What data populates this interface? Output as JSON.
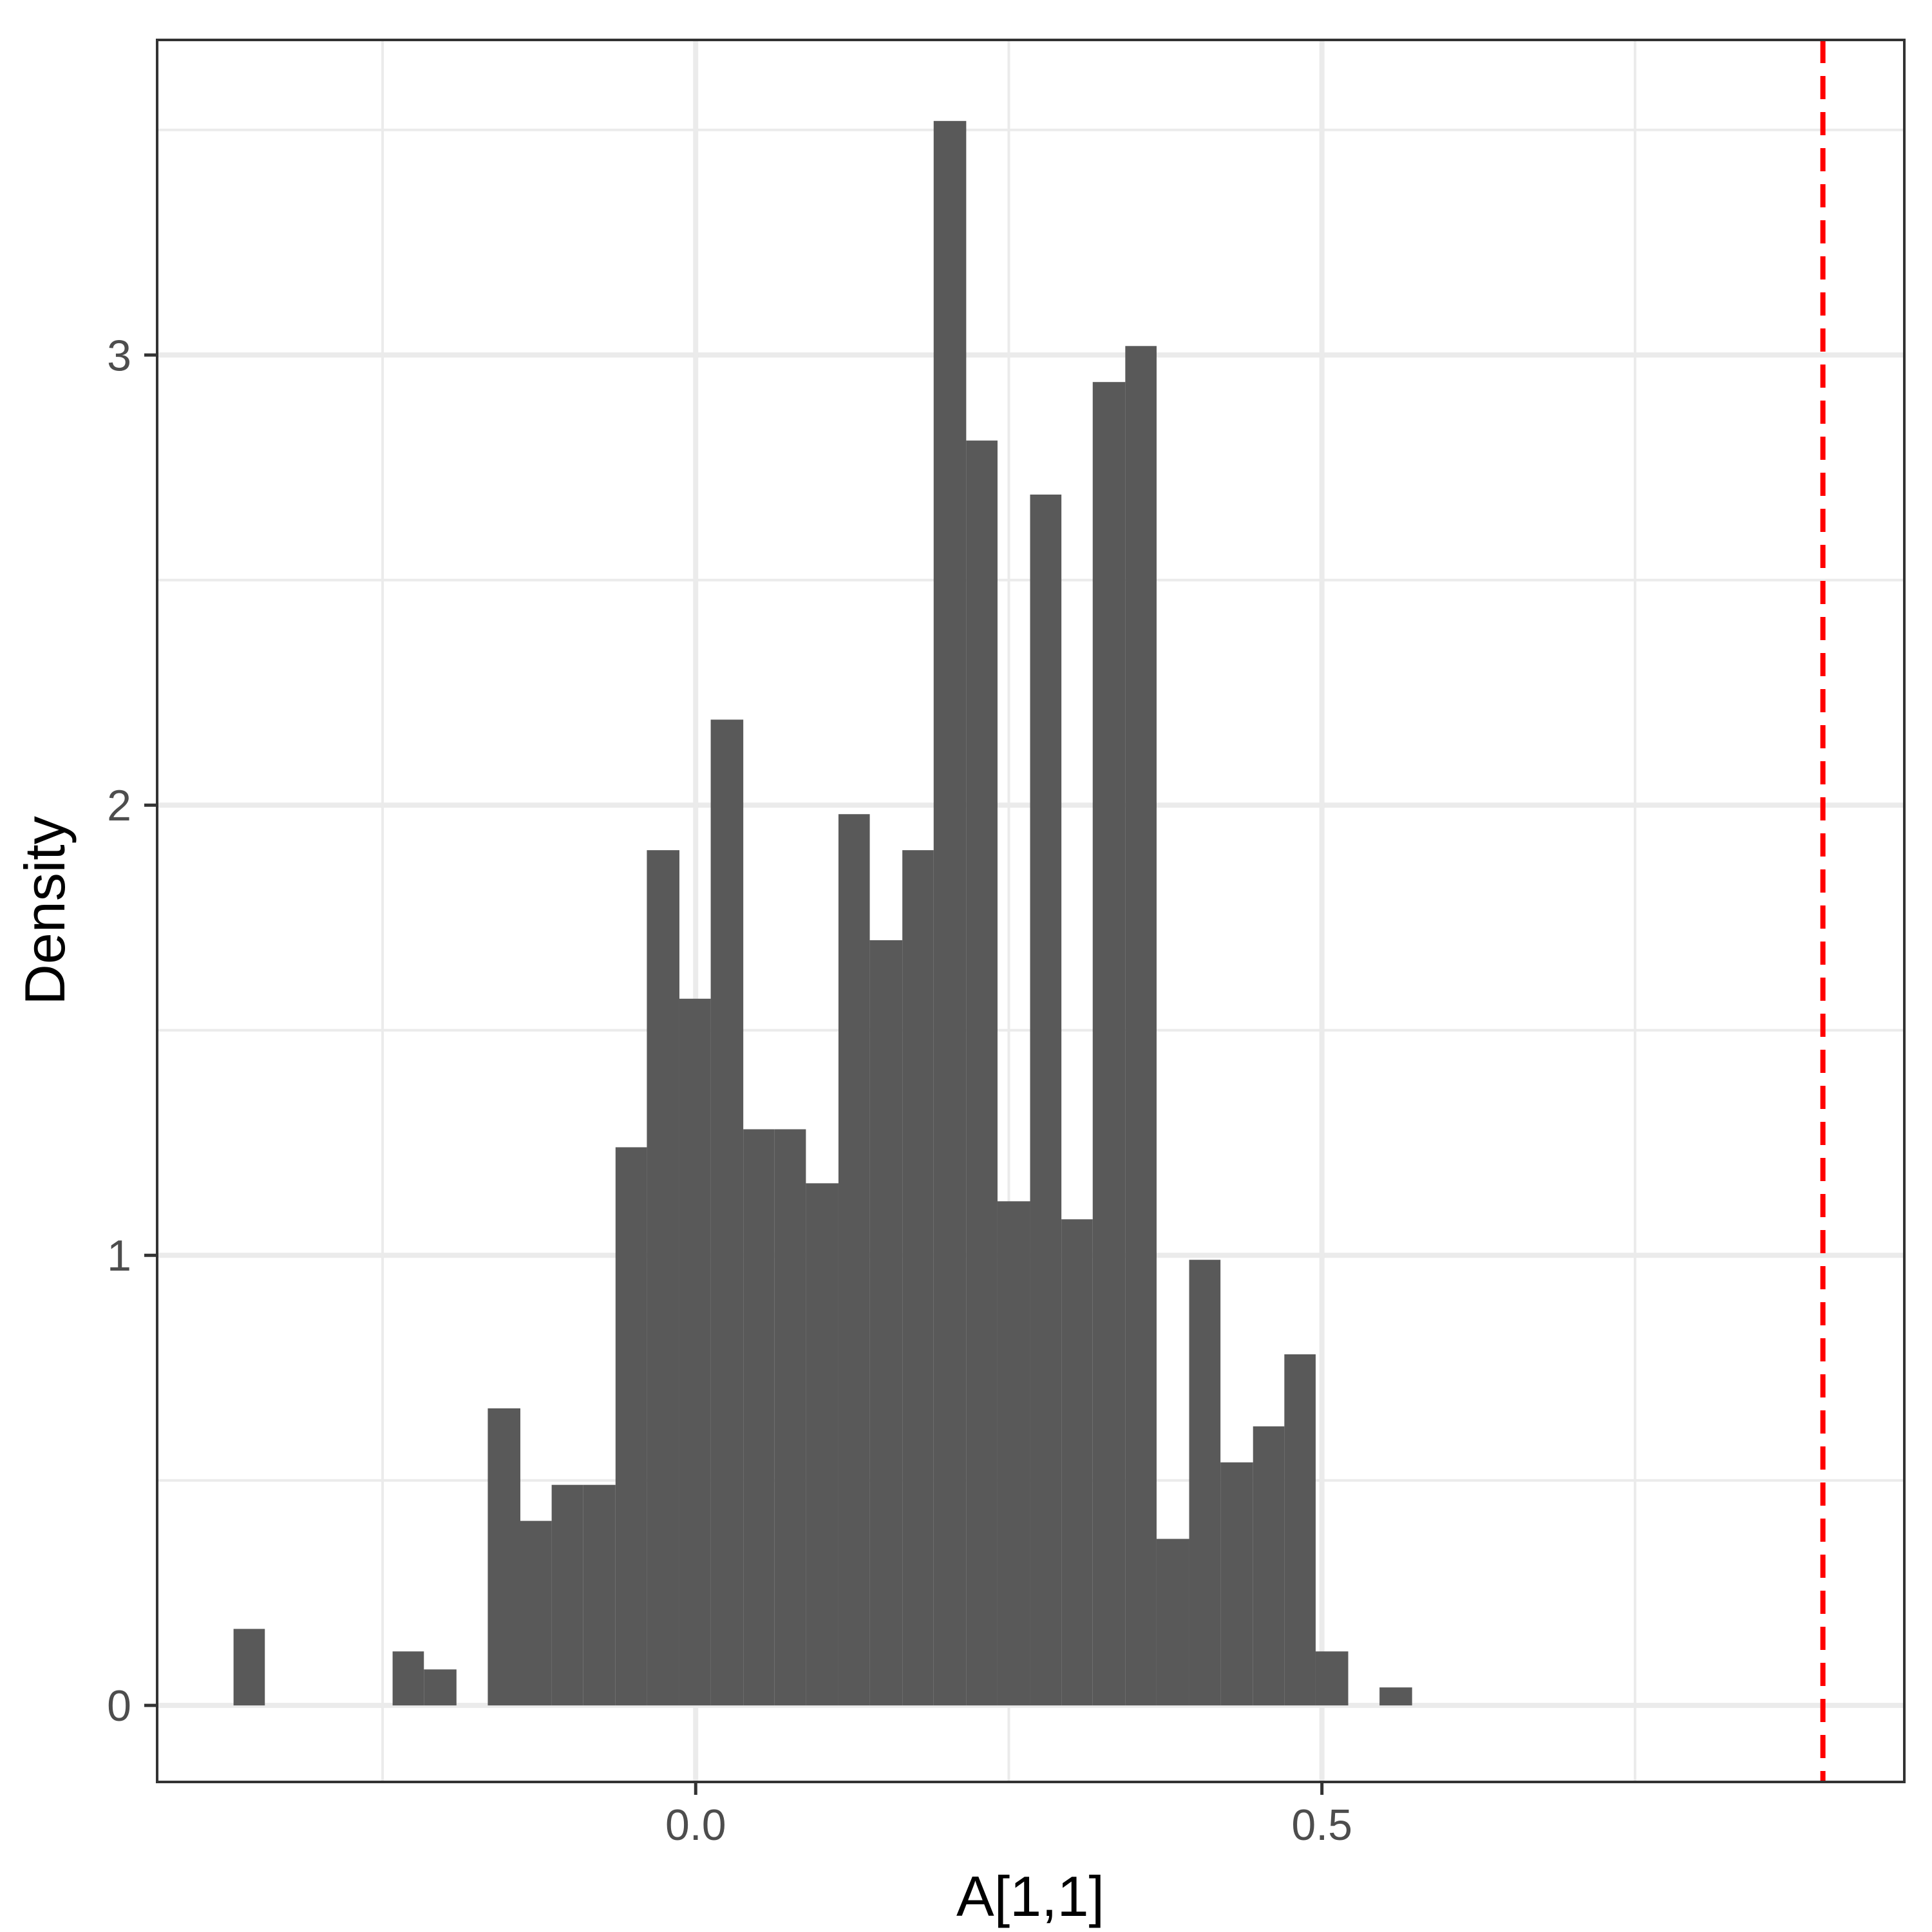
{
  "chart_data": {
    "type": "bar",
    "subtype": "histogram",
    "title": "",
    "xlabel": "A[1,1]",
    "ylabel": "Density",
    "xlim": [
      -0.43,
      0.965
    ],
    "ylim": [
      -0.17,
      3.7
    ],
    "bin_width": 0.0254,
    "x_ticks": [
      {
        "value": 0.0,
        "label": "0.0"
      },
      {
        "value": 0.5,
        "label": "0.5"
      }
    ],
    "y_ticks": [
      {
        "value": 0,
        "label": "0"
      },
      {
        "value": 1,
        "label": "1"
      },
      {
        "value": 2,
        "label": "2"
      },
      {
        "value": 3,
        "label": "3"
      }
    ],
    "x_minor_gridlines": [
      -0.25,
      0.25,
      0.75
    ],
    "y_minor_gridlines": [
      0.5,
      1.5,
      2.5,
      3.5
    ],
    "grid": true,
    "legend": "none",
    "colors": {
      "bar": "#595959",
      "grid": "#ebebeb",
      "panel_border": "#333333",
      "reference_line": "#ff0000"
    },
    "reference_line": {
      "x": 0.9,
      "style": "dashed"
    },
    "bins": [
      {
        "x0": -0.369,
        "x1": -0.344,
        "y": 0.17
      },
      {
        "x0": -0.242,
        "x1": -0.217,
        "y": 0.12
      },
      {
        "x0": -0.217,
        "x1": -0.191,
        "y": 0.08
      },
      {
        "x0": -0.166,
        "x1": -0.14,
        "y": 0.66
      },
      {
        "x0": -0.14,
        "x1": -0.115,
        "y": 0.41
      },
      {
        "x0": -0.115,
        "x1": -0.09,
        "y": 0.49
      },
      {
        "x0": -0.09,
        "x1": -0.064,
        "y": 0.49
      },
      {
        "x0": -0.064,
        "x1": -0.039,
        "y": 1.24
      },
      {
        "x0": -0.039,
        "x1": -0.013,
        "y": 1.9
      },
      {
        "x0": -0.013,
        "x1": 0.012,
        "y": 1.57
      },
      {
        "x0": 0.012,
        "x1": 0.038,
        "y": 2.19
      },
      {
        "x0": 0.038,
        "x1": 0.063,
        "y": 1.28
      },
      {
        "x0": 0.063,
        "x1": 0.088,
        "y": 1.28
      },
      {
        "x0": 0.088,
        "x1": 0.114,
        "y": 1.16
      },
      {
        "x0": 0.114,
        "x1": 0.139,
        "y": 1.98
      },
      {
        "x0": 0.139,
        "x1": 0.165,
        "y": 1.7
      },
      {
        "x0": 0.165,
        "x1": 0.19,
        "y": 1.9
      },
      {
        "x0": 0.19,
        "x1": 0.216,
        "y": 3.52
      },
      {
        "x0": 0.216,
        "x1": 0.241,
        "y": 2.81
      },
      {
        "x0": 0.241,
        "x1": 0.267,
        "y": 1.12
      },
      {
        "x0": 0.267,
        "x1": 0.292,
        "y": 2.69
      },
      {
        "x0": 0.292,
        "x1": 0.317,
        "y": 1.08
      },
      {
        "x0": 0.317,
        "x1": 0.343,
        "y": 2.94
      },
      {
        "x0": 0.343,
        "x1": 0.368,
        "y": 3.02
      },
      {
        "x0": 0.368,
        "x1": 0.394,
        "y": 0.37
      },
      {
        "x0": 0.394,
        "x1": 0.419,
        "y": 0.99
      },
      {
        "x0": 0.419,
        "x1": 0.445,
        "y": 0.54
      },
      {
        "x0": 0.445,
        "x1": 0.47,
        "y": 0.62
      },
      {
        "x0": 0.47,
        "x1": 0.495,
        "y": 0.78
      },
      {
        "x0": 0.495,
        "x1": 0.521,
        "y": 0.12
      },
      {
        "x0": 0.546,
        "x1": 0.572,
        "y": 0.04
      }
    ]
  }
}
